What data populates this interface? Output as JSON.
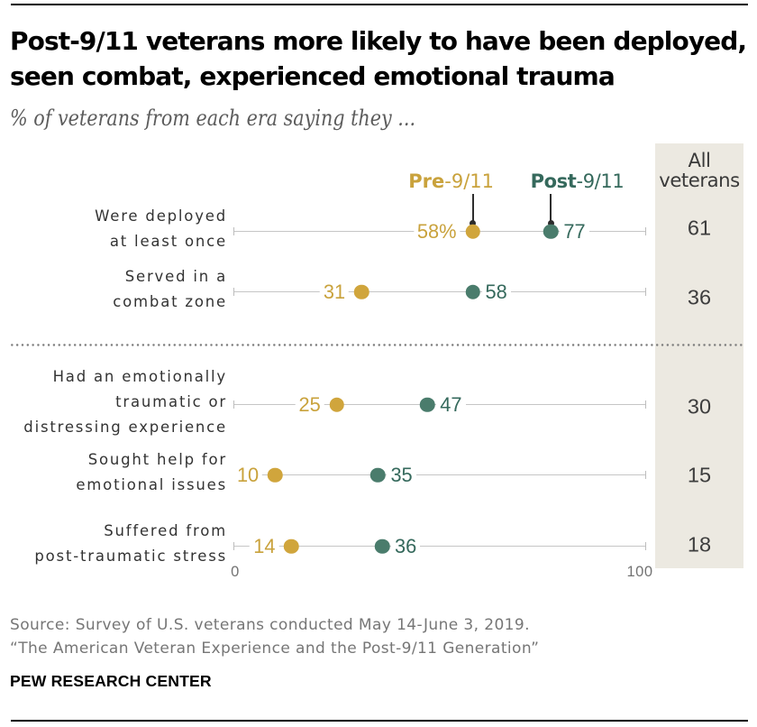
{
  "header": {
    "title_line1": "Post-9/11 veterans more likely to have been deployed,",
    "title_line2": "seen combat, experienced emotional trauma",
    "subtitle": "% of veterans from each era saying they ..."
  },
  "legend": {
    "pre_bold": "Pre",
    "pre_rest": "-9/11",
    "post_bold": "Post",
    "post_rest": "-9/11"
  },
  "right_column": {
    "header_line1": "All",
    "header_line2": "veterans"
  },
  "chart_data": {
    "type": "dot-plot",
    "title": "Post-9/11 veterans more likely to have been deployed, seen combat, experienced emotional trauma",
    "subtitle": "% of veterans from each era saying they ...",
    "xlim": [
      0,
      100
    ],
    "x_axis_tick_labels": [
      "0",
      "100"
    ],
    "legend_position": "top",
    "grid": false,
    "categories": [
      [
        "Were deployed",
        "at least once"
      ],
      [
        "Served in a",
        "combat zone"
      ],
      [
        "Had an emotionally",
        "traumatic or",
        "distressing experience"
      ],
      [
        "Sought help for",
        "emotional issues"
      ],
      [
        "Suffered from",
        "post-traumatic stress"
      ]
    ],
    "series": [
      {
        "name": "Pre-9/11",
        "values": [
          58,
          31,
          25,
          10,
          14
        ],
        "labels": [
          "58%",
          "31",
          "25",
          "10",
          "14"
        ]
      },
      {
        "name": "Post-9/11",
        "values": [
          77,
          58,
          47,
          35,
          36
        ],
        "labels": [
          "77",
          "58",
          "47",
          "35",
          "36"
        ]
      },
      {
        "name": "All veterans",
        "values": [
          61,
          36,
          30,
          15,
          18
        ],
        "labels": [
          "61",
          "36",
          "30",
          "15",
          "18"
        ]
      }
    ],
    "divider_after_category_index": 1,
    "colors": {
      "pre_dot": "#D0A53C",
      "pre_text": "#C9A23C",
      "post_dot": "#4A7C6C",
      "post_text": "#35695C",
      "all_box_bg": "#ECE9E1",
      "leader_line": "#2e2e2e",
      "mini_dot": "#2b2b2b",
      "row_line": "#c6c6c6",
      "row_tick": "#bdbdbd",
      "divider_dots": "#7d7d7d"
    }
  },
  "footer": {
    "source_line1": "Source: Survey of U.S. veterans conducted May 14-June 3, 2019.",
    "source_line2": "“The American Veteran Experience and the Post-9/11 Generation”",
    "brand": "PEW RESEARCH CENTER"
  }
}
